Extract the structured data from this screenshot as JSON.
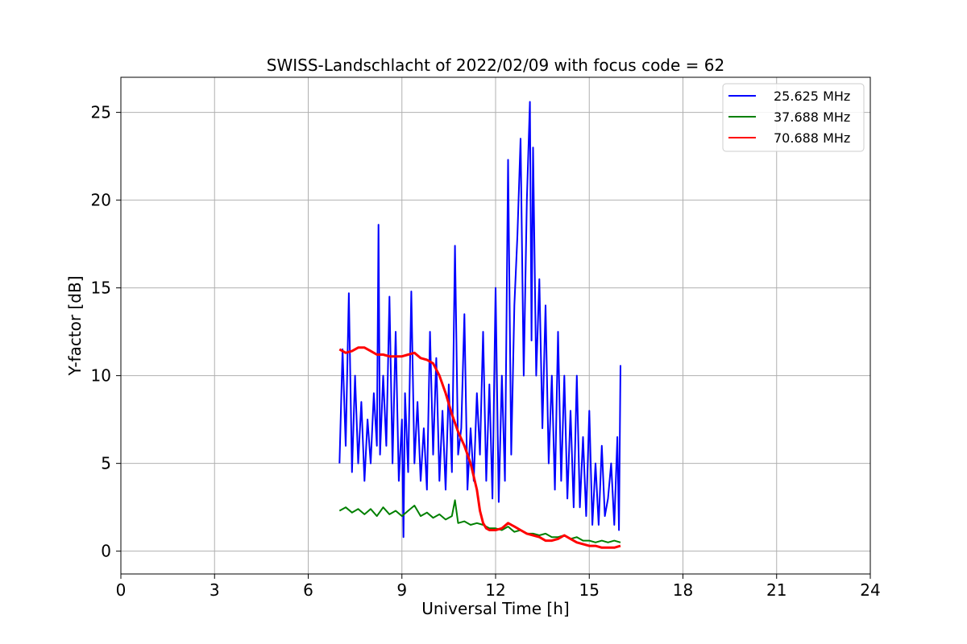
{
  "chart_data": {
    "type": "line",
    "title": "SWISS-Landschlacht of 2022/02/09 with focus code = 62",
    "xlabel": "Universal Time [h]",
    "ylabel": "Y-factor [dB]",
    "xlim": [
      0,
      24
    ],
    "ylim": [
      -1.3,
      27
    ],
    "xticks": [
      "0",
      "3",
      "6",
      "9",
      "12",
      "15",
      "18",
      "21",
      "24"
    ],
    "xtick_values": [
      0,
      3,
      6,
      9,
      12,
      15,
      18,
      21,
      24
    ],
    "yticks": [
      "0",
      "5",
      "10",
      "15",
      "20",
      "25"
    ],
    "ytick_values": [
      0,
      5,
      10,
      15,
      20,
      25
    ],
    "grid": true,
    "legend_position": "top-right",
    "series": [
      {
        "name": "25.625 MHz",
        "color": "#0000ff",
        "x": [
          7.0,
          7.1,
          7.2,
          7.3,
          7.4,
          7.5,
          7.6,
          7.7,
          7.8,
          7.9,
          8.0,
          8.1,
          8.2,
          8.25,
          8.3,
          8.4,
          8.5,
          8.6,
          8.7,
          8.8,
          8.9,
          9.0,
          9.05,
          9.1,
          9.2,
          9.3,
          9.4,
          9.5,
          9.6,
          9.7,
          9.8,
          9.9,
          10.0,
          10.1,
          10.2,
          10.3,
          10.4,
          10.5,
          10.6,
          10.7,
          10.8,
          10.9,
          11.0,
          11.1,
          11.2,
          11.3,
          11.4,
          11.5,
          11.6,
          11.7,
          11.8,
          11.9,
          12.0,
          12.1,
          12.2,
          12.3,
          12.4,
          12.5,
          12.6,
          12.7,
          12.8,
          12.9,
          13.0,
          13.1,
          13.15,
          13.2,
          13.3,
          13.4,
          13.5,
          13.6,
          13.7,
          13.8,
          13.9,
          14.0,
          14.1,
          14.2,
          14.3,
          14.4,
          14.5,
          14.6,
          14.7,
          14.8,
          14.9,
          15.0,
          15.1,
          15.2,
          15.3,
          15.4,
          15.5,
          15.6,
          15.7,
          15.8,
          15.9,
          15.95,
          16.0
        ],
        "y": [
          5.0,
          11.5,
          6.0,
          14.7,
          4.5,
          10.0,
          5.0,
          8.5,
          4.0,
          7.5,
          5.0,
          9.0,
          6.0,
          18.6,
          5.5,
          10.0,
          6.0,
          14.5,
          5.0,
          12.5,
          4.0,
          7.5,
          0.8,
          9.0,
          4.5,
          14.8,
          5.0,
          8.5,
          4.0,
          7.0,
          3.5,
          12.5,
          5.5,
          11.0,
          4.0,
          8.0,
          3.5,
          9.5,
          4.5,
          17.4,
          5.5,
          7.0,
          13.5,
          3.5,
          7.0,
          4.0,
          9.0,
          5.5,
          12.5,
          4.0,
          9.5,
          3.0,
          15.0,
          2.8,
          10.0,
          4.0,
          22.3,
          5.5,
          14.0,
          18.0,
          23.5,
          10.0,
          20.0,
          25.6,
          12.0,
          23.0,
          10.0,
          15.5,
          7.0,
          14.0,
          5.0,
          10.0,
          3.5,
          12.5,
          4.0,
          10.0,
          3.0,
          8.0,
          2.5,
          10.0,
          2.5,
          6.5,
          2.0,
          8.0,
          1.5,
          5.0,
          1.5,
          6.0,
          2.0,
          3.0,
          5.0,
          1.5,
          6.5,
          1.2,
          10.6
        ]
      },
      {
        "name": "37.688 MHz",
        "color": "#008000",
        "x": [
          7.0,
          7.2,
          7.4,
          7.6,
          7.8,
          8.0,
          8.2,
          8.4,
          8.6,
          8.8,
          9.0,
          9.2,
          9.4,
          9.6,
          9.8,
          10.0,
          10.2,
          10.4,
          10.6,
          10.7,
          10.8,
          11.0,
          11.2,
          11.4,
          11.6,
          11.8,
          12.0,
          12.2,
          12.4,
          12.6,
          12.8,
          13.0,
          13.2,
          13.4,
          13.6,
          13.8,
          14.0,
          14.2,
          14.4,
          14.6,
          14.8,
          15.0,
          15.2,
          15.4,
          15.6,
          15.8,
          16.0
        ],
        "y": [
          2.3,
          2.5,
          2.2,
          2.4,
          2.1,
          2.4,
          2.0,
          2.5,
          2.1,
          2.3,
          2.0,
          2.3,
          2.6,
          2.0,
          2.2,
          1.9,
          2.1,
          1.8,
          2.0,
          2.9,
          1.6,
          1.7,
          1.5,
          1.6,
          1.5,
          1.3,
          1.3,
          1.2,
          1.4,
          1.1,
          1.2,
          1.0,
          1.0,
          0.9,
          1.0,
          0.8,
          0.8,
          0.9,
          0.7,
          0.8,
          0.6,
          0.6,
          0.5,
          0.6,
          0.5,
          0.6,
          0.5
        ]
      },
      {
        "name": "70.688 MHz",
        "color": "#ff0000",
        "x": [
          7.0,
          7.2,
          7.4,
          7.6,
          7.8,
          8.0,
          8.2,
          8.4,
          8.6,
          8.8,
          9.0,
          9.2,
          9.4,
          9.6,
          9.8,
          10.0,
          10.2,
          10.4,
          10.6,
          10.8,
          11.0,
          11.2,
          11.4,
          11.5,
          11.6,
          11.7,
          11.8,
          12.0,
          12.2,
          12.4,
          12.6,
          12.8,
          13.0,
          13.2,
          13.4,
          13.6,
          13.8,
          14.0,
          14.2,
          14.4,
          14.6,
          14.8,
          15.0,
          15.2,
          15.4,
          15.6,
          15.8,
          16.0
        ],
        "y": [
          11.5,
          11.3,
          11.4,
          11.6,
          11.6,
          11.4,
          11.2,
          11.2,
          11.1,
          11.1,
          11.1,
          11.2,
          11.3,
          11.0,
          10.9,
          10.7,
          10.0,
          9.0,
          7.8,
          6.8,
          6.0,
          5.0,
          3.5,
          2.3,
          1.6,
          1.3,
          1.2,
          1.2,
          1.3,
          1.6,
          1.4,
          1.2,
          1.0,
          0.9,
          0.8,
          0.6,
          0.6,
          0.7,
          0.9,
          0.7,
          0.5,
          0.4,
          0.3,
          0.3,
          0.2,
          0.2,
          0.2,
          0.3
        ]
      }
    ]
  }
}
